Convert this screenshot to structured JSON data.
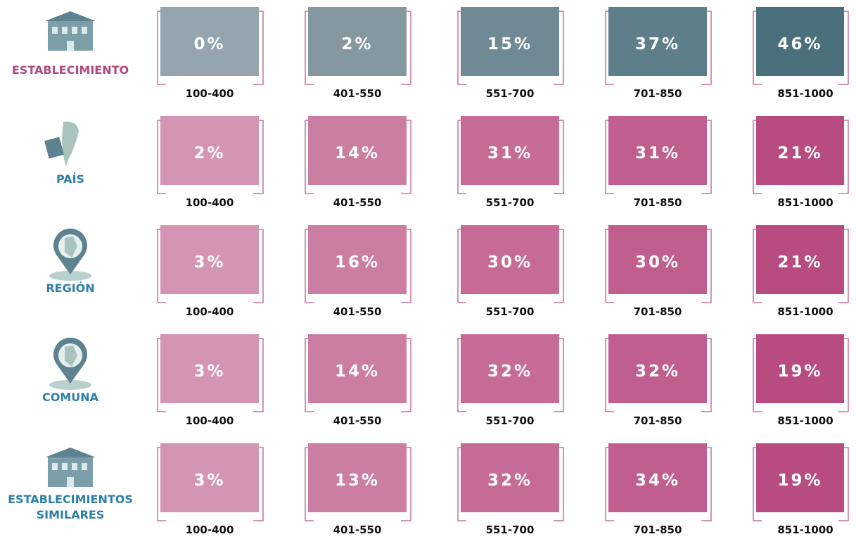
{
  "rows": [
    {
      "label": [
        "ESTABLECIMIENTO"
      ],
      "cells": [
        {
          "value": "0%",
          "range": "100-400"
        },
        {
          "value": "2%",
          "range": "401-550"
        },
        {
          "value": "15%",
          "range": "551-700"
        },
        {
          "value": "37%",
          "range": "701-850"
        },
        {
          "value": "46%",
          "range": "851-1000"
        }
      ]
    },
    {
      "label": [
        "PAÍS"
      ],
      "cells": [
        {
          "value": "2%",
          "range": "100-400"
        },
        {
          "value": "14%",
          "range": "401-550"
        },
        {
          "value": "31%",
          "range": "551-700"
        },
        {
          "value": "31%",
          "range": "701-850"
        },
        {
          "value": "21%",
          "range": "851-1000"
        }
      ]
    },
    {
      "label": [
        "REGIÓN"
      ],
      "cells": [
        {
          "value": "3%",
          "range": "100-400"
        },
        {
          "value": "16%",
          "range": "401-550"
        },
        {
          "value": "30%",
          "range": "551-700"
        },
        {
          "value": "30%",
          "range": "701-850"
        },
        {
          "value": "21%",
          "range": "851-1000"
        }
      ]
    },
    {
      "label": [
        "COMUNA"
      ],
      "cells": [
        {
          "value": "3%",
          "range": "100-400"
        },
        {
          "value": "14%",
          "range": "401-550"
        },
        {
          "value": "32%",
          "range": "551-700"
        },
        {
          "value": "32%",
          "range": "701-850"
        },
        {
          "value": "19%",
          "range": "851-1000"
        }
      ]
    },
    {
      "label": [
        "ESTABLECIMIENTOS",
        "SIMILARES"
      ],
      "cells": [
        {
          "value": "3%",
          "range": "100-400"
        },
        {
          "value": "13%",
          "range": "401-550"
        },
        {
          "value": "32%",
          "range": "551-700"
        },
        {
          "value": "34%",
          "range": "701-850"
        },
        {
          "value": "19%",
          "range": "851-1000"
        }
      ]
    }
  ]
}
